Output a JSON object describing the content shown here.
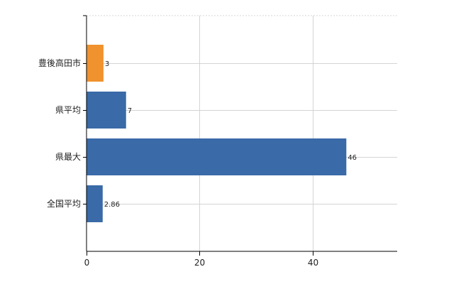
{
  "chart_data": {
    "type": "bar",
    "orientation": "horizontal",
    "categories": [
      "豊後高田市",
      "県平均",
      "県最大",
      "全国平均"
    ],
    "values": [
      3,
      7,
      46,
      2.86
    ],
    "data_labels": [
      "3",
      "7",
      "46",
      "2.86"
    ],
    "highlight_index": 0,
    "colors": {
      "default": "#3a6aa7",
      "highlight": "#f0922e",
      "grid": "#d4d4d4",
      "axis": "#000000"
    },
    "xlim": [
      0,
      55
    ],
    "xticks": [
      0,
      20,
      40
    ],
    "xtick_labels": [
      "0",
      "20",
      "40"
    ],
    "grid": true,
    "title": "",
    "xlabel": "",
    "ylabel": ""
  }
}
